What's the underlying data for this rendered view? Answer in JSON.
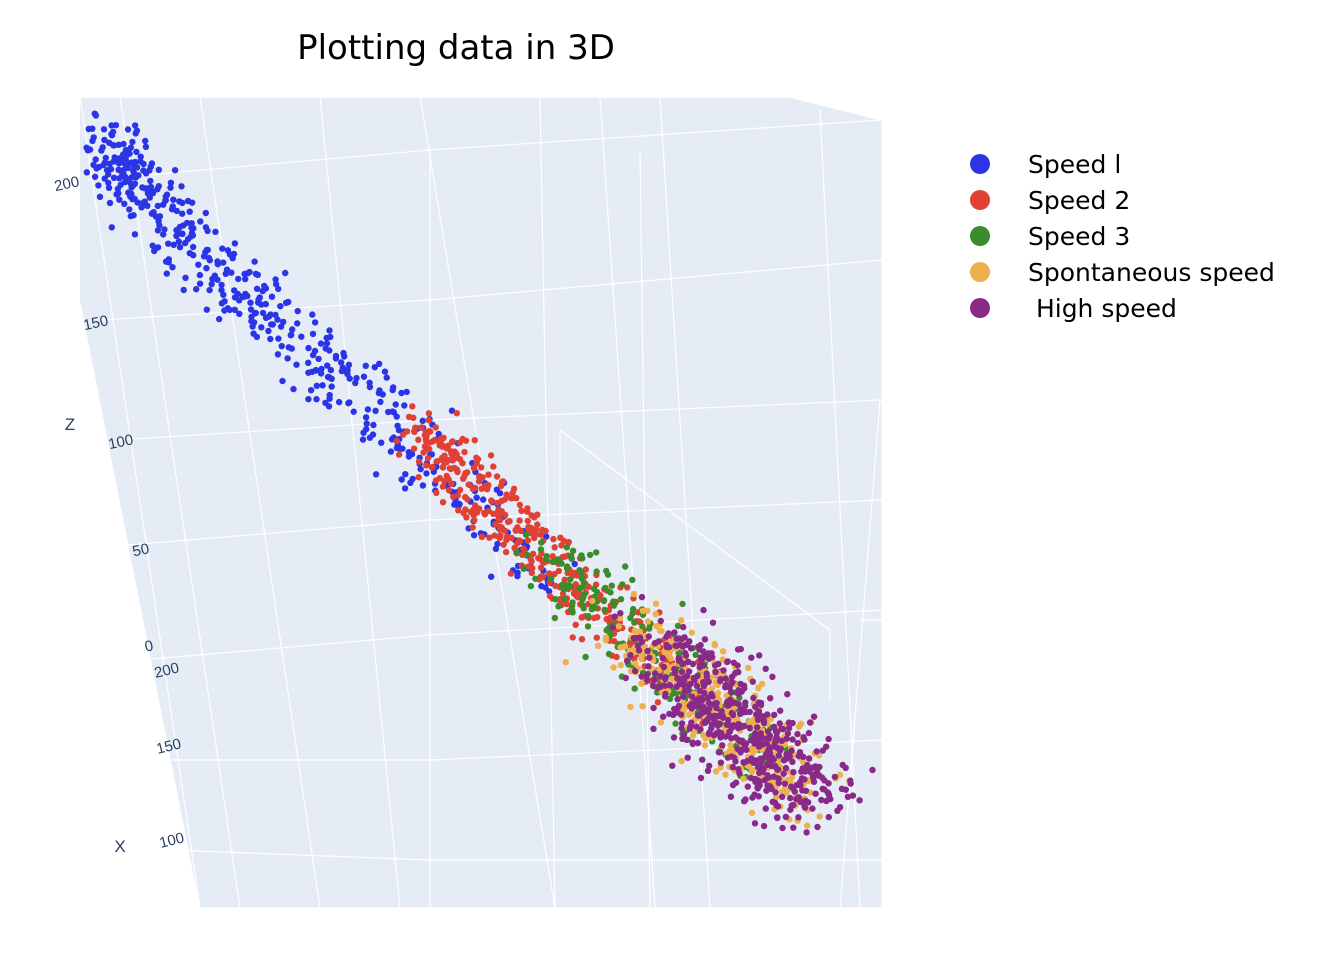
{
  "chart_data": {
    "type": "scatter",
    "title": "Plotting data in 3D",
    "axes": {
      "z": {
        "title": "Z",
        "ticks": [
          "0",
          "50",
          "100",
          "150",
          "200"
        ]
      },
      "x": {
        "title": "X",
        "ticks": [
          "200",
          "150",
          "100"
        ]
      }
    },
    "grid": true,
    "legend_position": "top-right",
    "series": [
      {
        "name": "Speed 1",
        "label": "Speed l",
        "color": "#2b35e6",
        "x": [
          85,
          95,
          105,
          112,
          120,
          128,
          135,
          142,
          150,
          158,
          165,
          172,
          180,
          188,
          195,
          200,
          208,
          212
        ],
        "z": [
          80,
          95,
          110,
          118,
          128,
          140,
          148,
          155,
          165,
          172,
          180,
          188,
          195,
          202,
          208,
          212,
          218,
          222
        ]
      },
      {
        "name": "Speed 2",
        "label": "Speed 2",
        "color": "#e04134",
        "x": [
          60,
          70,
          80,
          90,
          100,
          108,
          115,
          122,
          130,
          138,
          145
        ],
        "z": [
          40,
          55,
          68,
          80,
          90,
          98,
          105,
          112,
          118,
          124,
          130
        ]
      },
      {
        "name": "Speed 3",
        "label": "Speed 3",
        "color": "#3b8c2a",
        "x": [
          50,
          60,
          70,
          80,
          90,
          100,
          110
        ],
        "z": [
          25,
          38,
          50,
          62,
          72,
          82,
          90
        ]
      },
      {
        "name": "Spontaneous speed",
        "label": "Spontaneous speed",
        "color": "#eeb04f",
        "x": [
          40,
          50,
          60,
          70,
          80,
          90
        ],
        "z": [
          15,
          25,
          35,
          45,
          55,
          65
        ]
      },
      {
        "name": "High speed",
        "label": " High speed",
        "color": "#892a8a",
        "x": [
          40,
          50,
          60,
          70,
          80,
          90
        ],
        "z": [
          12,
          22,
          32,
          42,
          52,
          62
        ]
      }
    ]
  }
}
